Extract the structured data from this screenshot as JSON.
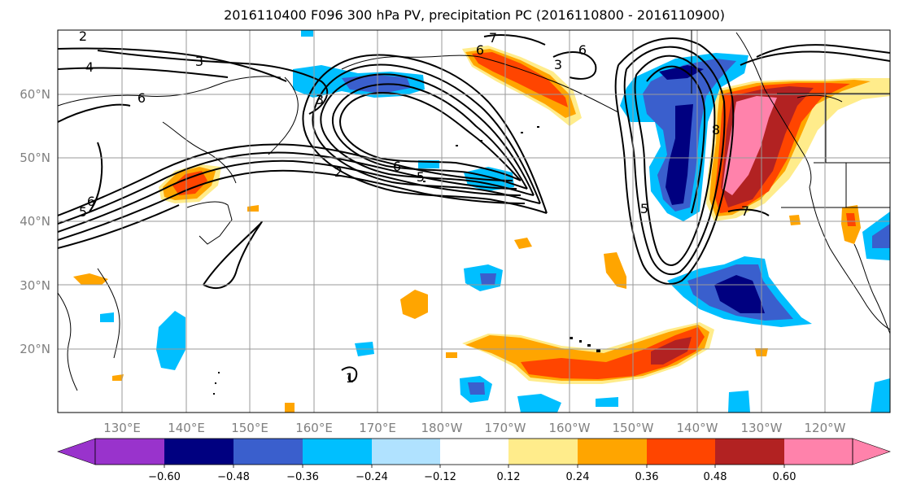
{
  "title": "2016110400 F096 300 hPa PV, precipitation PC (2016110800 - 2016110900)",
  "lat_labels": [
    "60°N",
    "50°N",
    "40°N",
    "30°N",
    "20°N"
  ],
  "lon_labels": [
    "130°E",
    "140°E",
    "150°E",
    "160°E",
    "170°E",
    "180°W",
    "170°W",
    "160°W",
    "150°W",
    "140°W",
    "130°W",
    "120°W"
  ],
  "contour_labels": [
    "2",
    "3",
    "4",
    "6",
    "7",
    "6",
    "6",
    "3",
    "6",
    "5",
    "2",
    "8",
    "5",
    "5",
    "6",
    "7",
    "3",
    "1"
  ],
  "colorbar": {
    "ticks": [
      "−0.60",
      "−0.48",
      "−0.36",
      "−0.24",
      "−0.12",
      "0.12",
      "0.24",
      "0.36",
      "0.48",
      "0.60"
    ],
    "colors": [
      "#9933cc",
      "#000080",
      "#3a5fcd",
      "#00bfff",
      "#b0e2ff",
      "#ffffff",
      "#ffec8b",
      "#ffa500",
      "#ff4500",
      "#b22222",
      "#ff82ab"
    ]
  },
  "layers": {
    "pv_contours": "300 hPa PV",
    "shading": "precipitation PC"
  }
}
